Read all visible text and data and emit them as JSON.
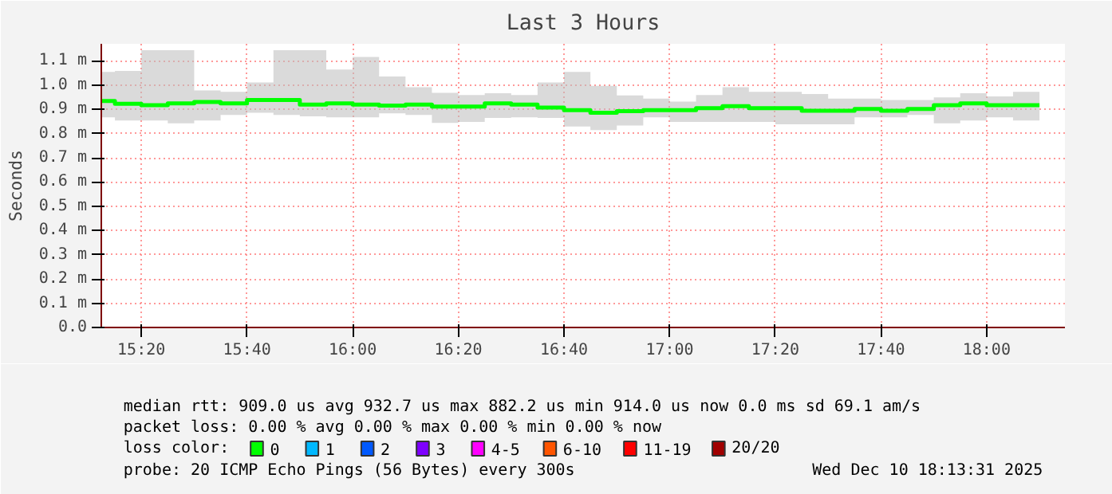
{
  "chart_data": {
    "type": "step",
    "title": "Last 3 Hours",
    "ylabel": "Seconds",
    "legend_title": "loss color:",
    "x": [
      15.25,
      15.3333,
      15.4167,
      15.5,
      15.5833,
      15.6667,
      15.75,
      15.8333,
      15.9167,
      16.0,
      16.0833,
      16.1667,
      16.25,
      16.3333,
      16.4167,
      16.5,
      16.5833,
      16.6667,
      16.75,
      16.8333,
      16.9167,
      17.0,
      17.0833,
      17.1667,
      17.25,
      17.3333,
      17.4167,
      17.5,
      17.5833,
      17.6667,
      17.75,
      17.8333,
      17.9167,
      18.0,
      18.0833,
      18.1667
    ],
    "series": [
      {
        "name": "0",
        "color": "#00ff00",
        "values": [
          0.934,
          0.923,
          0.917,
          0.924,
          0.93,
          0.924,
          0.938,
          0.938,
          0.919,
          0.924,
          0.919,
          0.915,
          0.919,
          0.911,
          0.911,
          0.924,
          0.919,
          0.907,
          0.896,
          0.886,
          0.892,
          0.896,
          0.896,
          0.905,
          0.913,
          0.905,
          0.905,
          0.894,
          0.894,
          0.901,
          0.894,
          0.901,
          0.917,
          0.924,
          0.917,
          0.917
        ],
        "upper": [
          1.054,
          1.058,
          1.144,
          1.144,
          0.978,
          0.972,
          1.011,
          1.144,
          1.144,
          1.064,
          1.116,
          1.035,
          0.991,
          0.968,
          0.959,
          0.966,
          0.959,
          1.011,
          1.054,
          0.997,
          0.957,
          0.944,
          0.932,
          0.959,
          0.991,
          0.972,
          0.972,
          0.963,
          0.944,
          0.944,
          0.938,
          0.938,
          0.949,
          0.966,
          0.953,
          0.972
        ],
        "lower": [
          0.867,
          0.854,
          0.854,
          0.842,
          0.854,
          0.877,
          0.886,
          0.877,
          0.871,
          0.867,
          0.867,
          0.883,
          0.877,
          0.844,
          0.848,
          0.864,
          0.867,
          0.864,
          0.829,
          0.814,
          0.833,
          0.867,
          0.848,
          0.848,
          0.848,
          0.848,
          0.838,
          0.838,
          0.838,
          0.867,
          0.867,
          0.877,
          0.842,
          0.854,
          0.867,
          0.854
        ]
      },
      {
        "name": "1",
        "color": "#00b8ff",
        "values": [
          null,
          null,
          null,
          null,
          null,
          null,
          null,
          null,
          null,
          null,
          null,
          null,
          null,
          null,
          null,
          null,
          null,
          null,
          null,
          null,
          null,
          null,
          null,
          null,
          null,
          null,
          null,
          null,
          null,
          null,
          null,
          null,
          null,
          null,
          null,
          null
        ]
      },
      {
        "name": "2",
        "color": "#0059ff",
        "values": [
          null,
          null,
          null,
          null,
          null,
          null,
          null,
          null,
          null,
          null,
          null,
          null,
          null,
          null,
          null,
          null,
          null,
          null,
          null,
          null,
          null,
          null,
          null,
          null,
          null,
          null,
          null,
          null,
          null,
          null,
          null,
          null,
          null,
          null,
          null,
          null
        ]
      },
      {
        "name": "3",
        "color": "#7e00ff",
        "values": [
          null,
          null,
          null,
          null,
          null,
          null,
          null,
          null,
          null,
          null,
          null,
          null,
          null,
          null,
          null,
          null,
          null,
          null,
          null,
          null,
          null,
          null,
          null,
          null,
          null,
          null,
          null,
          null,
          null,
          null,
          null,
          null,
          null,
          null,
          null,
          null
        ]
      },
      {
        "name": "4-5",
        "color": "#ff00ff",
        "values": [
          null,
          null,
          null,
          null,
          null,
          null,
          null,
          null,
          null,
          null,
          null,
          null,
          null,
          null,
          null,
          null,
          null,
          null,
          null,
          null,
          null,
          null,
          null,
          null,
          null,
          null,
          null,
          null,
          null,
          null,
          null,
          null,
          null,
          null,
          null,
          null
        ]
      },
      {
        "name": "6-10",
        "color": "#ff5500",
        "values": [
          null,
          null,
          null,
          null,
          null,
          null,
          null,
          null,
          null,
          null,
          null,
          null,
          null,
          null,
          null,
          null,
          null,
          null,
          null,
          null,
          null,
          null,
          null,
          null,
          null,
          null,
          null,
          null,
          null,
          null,
          null,
          null,
          null,
          null,
          null,
          null
        ]
      },
      {
        "name": "11-19",
        "color": "#ff0000",
        "values": [
          null,
          null,
          null,
          null,
          null,
          null,
          null,
          null,
          null,
          null,
          null,
          null,
          null,
          null,
          null,
          null,
          null,
          null,
          null,
          null,
          null,
          null,
          null,
          null,
          null,
          null,
          null,
          null,
          null,
          null,
          null,
          null,
          null,
          null,
          null,
          null
        ]
      },
      {
        "name": "20/20",
        "color": "#a10000",
        "values": [
          null,
          null,
          null,
          null,
          null,
          null,
          null,
          null,
          null,
          null,
          null,
          null,
          null,
          null,
          null,
          null,
          null,
          null,
          null,
          null,
          null,
          null,
          null,
          null,
          null,
          null,
          null,
          null,
          null,
          null,
          null,
          null,
          null,
          null,
          null,
          null
        ]
      }
    ],
    "xlim": [
      15.207,
      18.247
    ],
    "ylim": [
      0,
      1.17
    ],
    "xticks": [
      {
        "value": 15.3333,
        "label": "15:20"
      },
      {
        "value": 15.6667,
        "label": "15:40"
      },
      {
        "value": 16.0,
        "label": "16:00"
      },
      {
        "value": 16.3333,
        "label": "16:20"
      },
      {
        "value": 16.6667,
        "label": "16:40"
      },
      {
        "value": 17.0,
        "label": "17:00"
      },
      {
        "value": 17.3333,
        "label": "17:20"
      },
      {
        "value": 17.6667,
        "label": "17:40"
      },
      {
        "value": 18.0,
        "label": "18:00"
      }
    ],
    "yticks": [
      {
        "value": 0,
        "label": "0.0"
      },
      {
        "value": 0.1,
        "label": "0.1 m"
      },
      {
        "value": 0.2,
        "label": "0.2 m"
      },
      {
        "value": 0.3,
        "label": "0.3 m"
      },
      {
        "value": 0.4,
        "label": "0.4 m"
      },
      {
        "value": 0.5,
        "label": "0.5 m"
      },
      {
        "value": 0.6,
        "label": "0.6 m"
      },
      {
        "value": 0.7,
        "label": "0.7 m"
      },
      {
        "value": 0.8,
        "label": "0.8 m"
      },
      {
        "value": 0.9,
        "label": "0.9 m"
      },
      {
        "value": 1.0,
        "label": "1.0 m"
      },
      {
        "value": 1.1,
        "label": "1.1 m"
      }
    ],
    "grid": true,
    "legend": "bottom",
    "annotations": [
      "median rtt: 909.0 us avg 932.7 us max 882.2 us min 914.0 us now 0.0 ms sd 69.1 am/s",
      "packet loss: 0.00 % avg 0.00 % max 0.00 % min 0.00 % now",
      "probe: 20 ICMP Echo Pings (56 Bytes) every 300s",
      "Wed Dec 10 18:13:31 2025"
    ]
  }
}
